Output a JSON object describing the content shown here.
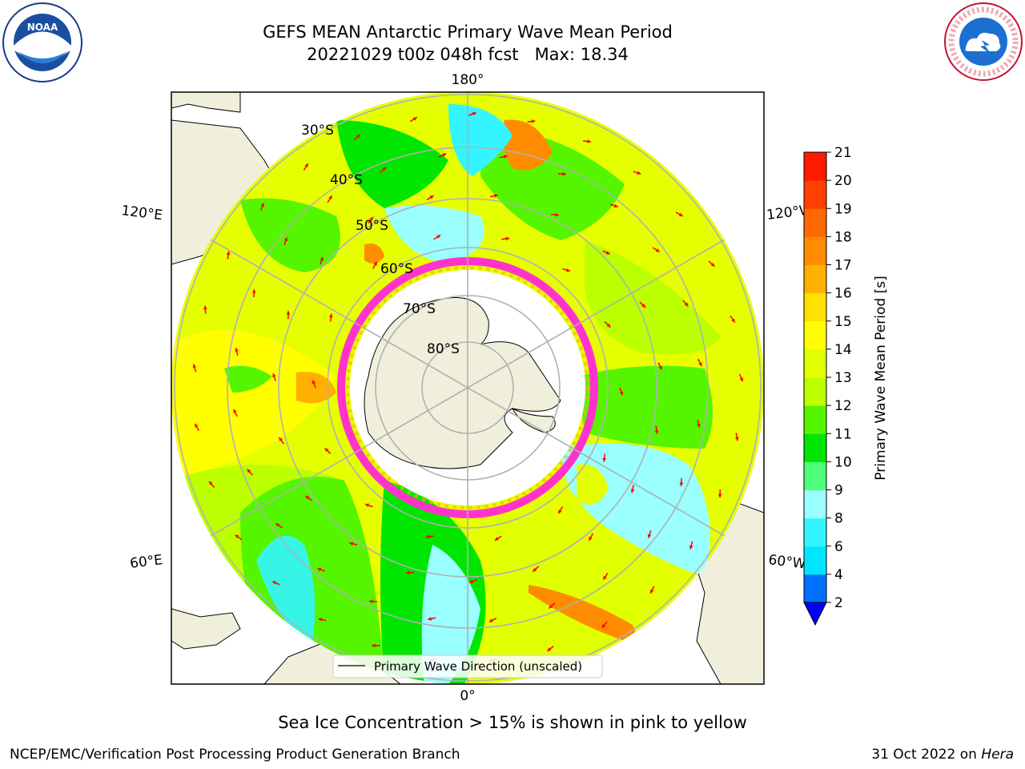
{
  "title": {
    "line1": "GEFS MEAN Antarctic Primary Wave Mean Period",
    "line2": "20221029 t00z 048h fcst   Max: 18.34"
  },
  "map": {
    "projection": "south-polar-stereographic",
    "longitude_labels": [
      "180°",
      "120°E",
      "120°W",
      "60°E",
      "60°W",
      "0°"
    ],
    "latitude_labels": [
      "30°S",
      "40°S",
      "50°S",
      "60°S",
      "70°S",
      "80°S"
    ],
    "legend_label": "Primary Wave Direction (unscaled)"
  },
  "colorbar": {
    "label": "Primary Wave Mean Period [s]",
    "ticks": [
      "2",
      "4",
      "6",
      "8",
      "9",
      "10",
      "11",
      "12",
      "13",
      "14",
      "15",
      "16",
      "17",
      "18",
      "19",
      "20",
      "21"
    ],
    "colors": [
      "#0072ff",
      "#00e5ff",
      "#33f5ff",
      "#99ffff",
      "#4dff7a",
      "#00e600",
      "#55f500",
      "#bbff00",
      "#e0ff00",
      "#ffff00",
      "#ffe000",
      "#ffb000",
      "#ff8c00",
      "#ff6a00",
      "#ff4000",
      "#ff1a00"
    ],
    "under_color": "#0000ff"
  },
  "note": "Sea Ice Concentration > 15% is shown in pink to yellow",
  "footer": {
    "left": "NCEP/EMC/Verification Post Processing Product Generation Branch",
    "date": "31 Oct 2022 on ",
    "host": "Hera"
  },
  "logos": {
    "noaa": "NOAA",
    "nws_text": "NATIONAL WEATHER SERVICE"
  }
}
